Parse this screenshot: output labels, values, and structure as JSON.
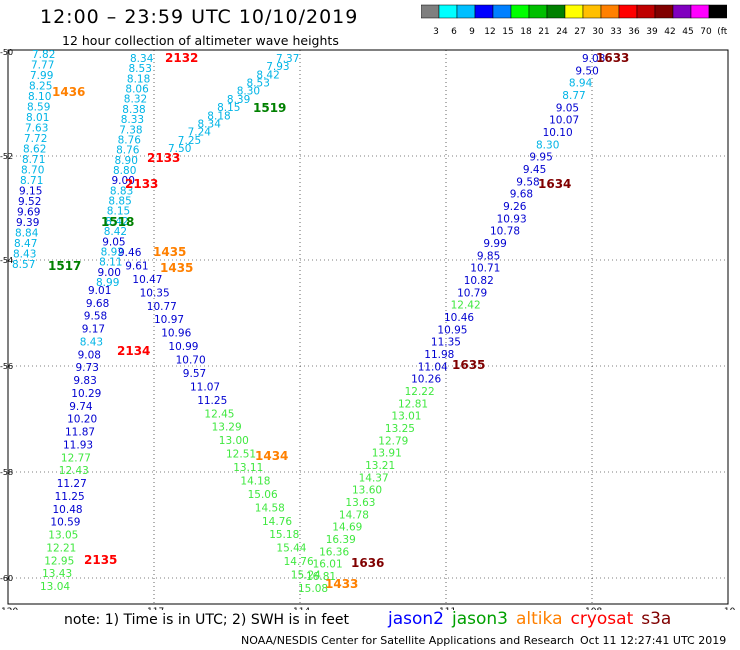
{
  "header": {
    "title": "12:00 – 23:59 UTC 10/10/2019",
    "subtitle": "12 hour collection of altimeter wave heights"
  },
  "colorbar": {
    "colors": [
      "#7f7f7f",
      "#00ffff",
      "#00bfff",
      "#0000ff",
      "#0080ff",
      "#00ff00",
      "#00bf00",
      "#008000",
      "#ffff00",
      "#ffbf00",
      "#ff8000",
      "#ff0000",
      "#bf0000",
      "#800000",
      "#8000bf",
      "#ff00ff",
      "#000000"
    ],
    "labels": [
      "3",
      "6",
      "9",
      "12",
      "15",
      "18",
      "21",
      "24",
      "27",
      "30",
      "33",
      "36",
      "39",
      "42",
      "45",
      "70",
      "(ft)"
    ]
  },
  "axes": {
    "lon_ticks": [
      "-120",
      "-117",
      "-114",
      "-111",
      "-108",
      "-10"
    ],
    "lat_ticks": [
      "-50",
      "-52",
      "-54",
      "-56",
      "-58",
      "-60"
    ]
  },
  "swh_values": {
    "pass_a": [
      "7.82",
      "7.77",
      "7.99",
      "8.25",
      "8.10",
      "8.59",
      "8.01",
      "7.63",
      "7.72",
      "8.62",
      "8.71",
      "8.70",
      "8.71",
      "9.15",
      "9.52",
      "9.69",
      "9.39",
      "8.84",
      "8.47",
      "8.43",
      "8.57"
    ],
    "pass_b": [
      "8.34",
      "8.53",
      "8.18",
      "8.06",
      "8.32",
      "8.38",
      "8.33",
      "7.38",
      "8.76",
      "8.76",
      "8.90",
      "8.80",
      "9.00",
      "8.83",
      "8.85",
      "8.15",
      "8.42",
      "8.42",
      "9.05",
      "8.92",
      "8.11",
      "9.00",
      "8.99"
    ],
    "pass_c": [
      "7.37",
      "7.93",
      "8.42",
      "8.53",
      "8.30",
      "8.39",
      "8.15",
      "8.18",
      "8.34",
      "7.24",
      "7.25",
      "7.50"
    ],
    "pass_d": [
      "9.46",
      "9.61",
      "10.47",
      "10.35",
      "10.77",
      "10.97",
      "10.96",
      "10.99",
      "10.70",
      "9.57",
      "11.07",
      "11.25",
      "12.45",
      "13.29",
      "13.00",
      "12.51",
      "13.11",
      "14.18",
      "15.06",
      "14.58",
      "14.76",
      "15.18",
      "15.44",
      "14.76",
      "15.24",
      "15.08"
    ],
    "pass_e": [
      "9.01",
      "9.68",
      "9.58",
      "9.17",
      "8.43",
      "9.08",
      "9.73",
      "9.83",
      "10.29",
      "9.74",
      "10.20",
      "11.87",
      "11.93",
      "12.77",
      "12.43",
      "11.27",
      "11.25",
      "10.48",
      "10.59",
      "13.05",
      "12.21",
      "12.95",
      "13.43",
      "13.04"
    ],
    "pass_f": [
      "9.03",
      "9.50",
      "8.94",
      "8.77",
      "9.05",
      "10.07",
      "10.10",
      "8.30",
      "9.95",
      "9.45",
      "9.58",
      "9.68",
      "9.26",
      "10.93",
      "10.78",
      "9.99",
      "9.85",
      "10.71",
      "10.82",
      "10.79",
      "12.42",
      "10.46",
      "10.95",
      "11.35",
      "11.98",
      "11.04",
      "10.26",
      "12.22",
      "12.81",
      "13.01",
      "13.25",
      "12.79",
      "13.91",
      "13.21",
      "14.37",
      "13.60",
      "13.63",
      "14.78",
      "14.69",
      "16.39",
      "16.36",
      "16.01",
      "16.81"
    ]
  },
  "time_labels": [
    {
      "text": "2132",
      "color": "#ff0000"
    },
    {
      "text": "1633",
      "color": "#800000"
    },
    {
      "text": "1436",
      "color": "#ff8000"
    },
    {
      "text": "1519",
      "color": "#008000"
    },
    {
      "text": "2133",
      "color": "#ff0000"
    },
    {
      "text": "2133",
      "color": "#ff0000"
    },
    {
      "text": "1634",
      "color": "#800000"
    },
    {
      "text": "1518",
      "color": "#008000"
    },
    {
      "text": "1435",
      "color": "#ff8000"
    },
    {
      "text": "1435",
      "color": "#ff8000"
    },
    {
      "text": "1517",
      "color": "#008000"
    },
    {
      "text": "2134",
      "color": "#ff0000"
    },
    {
      "text": "1635",
      "color": "#800000"
    },
    {
      "text": "1434",
      "color": "#ff8000"
    },
    {
      "text": "2135",
      "color": "#ff0000"
    },
    {
      "text": "1636",
      "color": "#800000"
    },
    {
      "text": "1433",
      "color": "#ff8000"
    }
  ],
  "footer": {
    "note": "note: 1) Time is in UTC; 2) SWH is in feet",
    "legend": [
      {
        "name": "jason2",
        "color": "#0000ff"
      },
      {
        "name": "jason3",
        "color": "#00a000"
      },
      {
        "name": "altika",
        "color": "#ff8000"
      },
      {
        "name": "cryosat",
        "color": "#ff0000"
      },
      {
        "name": "s3a",
        "color": "#800000"
      }
    ],
    "credit": "NOAA/NESDIS Center for Satellite Applications and Research",
    "timestamp": "Oct 11 12:27:41 UTC 2019"
  }
}
